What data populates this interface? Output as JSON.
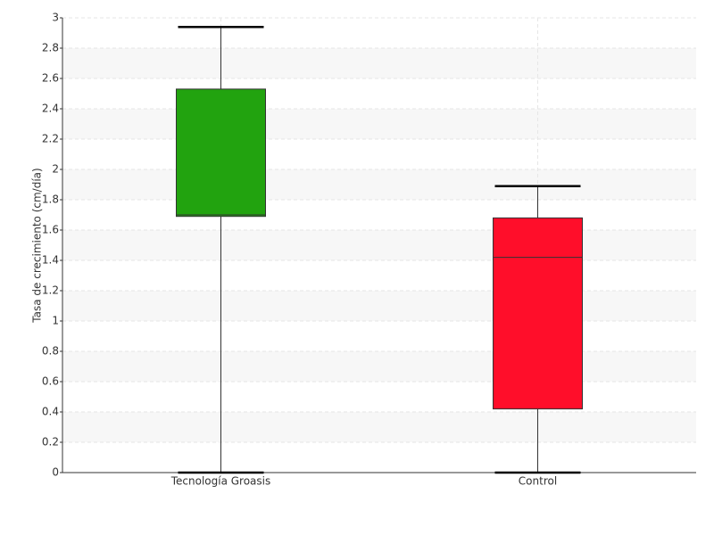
{
  "chart_data": {
    "type": "box",
    "y_label": "Tasa de crecimiento (cm/día)",
    "categories": [
      "Tecnología Groasis",
      "Control"
    ],
    "colors": [
      "#22a30f",
      "#ff0e2a"
    ],
    "min": [
      0,
      0
    ],
    "q1": [
      1.69,
      0.42
    ],
    "median": [
      1.7,
      1.42
    ],
    "q3": [
      2.53,
      1.68
    ],
    "max": [
      2.94,
      1.89
    ],
    "ylim": [
      0,
      3
    ],
    "yticks": [
      0,
      0.2,
      0.4,
      0.6,
      0.8,
      1,
      1.2,
      1.4,
      1.6,
      1.8,
      2,
      2.2,
      2.4,
      2.6,
      2.8,
      3
    ],
    "grid": true
  }
}
